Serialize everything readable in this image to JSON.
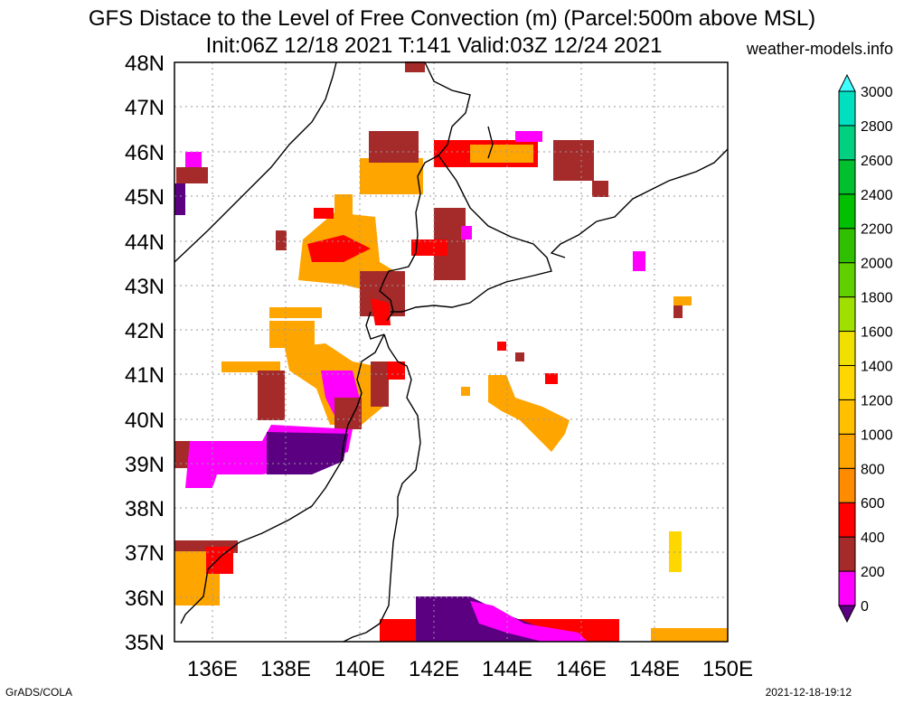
{
  "header": {
    "title_line1": "GFS Distace to the Level of Free Convection (m) (Parcel:500m above MSL)",
    "title_line2": "Init:06Z 12/18 2021 T:141 Valid:03Z 12/24 2021",
    "site": "weather-models.info"
  },
  "footer": {
    "left": "GrADS/COLA",
    "right": "2021-12-18-19:12"
  },
  "map": {
    "lat_labels": [
      "48N",
      "47N",
      "46N",
      "45N",
      "44N",
      "43N",
      "42N",
      "41N",
      "40N",
      "39N",
      "38N",
      "37N",
      "36N",
      "35N"
    ],
    "lon_labels": [
      "136E",
      "138E",
      "140E",
      "142E",
      "144E",
      "146E",
      "148E",
      "150E"
    ],
    "lat_range": [
      35,
      48
    ],
    "lon_range": [
      135,
      150
    ],
    "grid": "dotted"
  },
  "colorbar": {
    "levels": [
      "0",
      "200",
      "400",
      "600",
      "800",
      "1000",
      "1200",
      "1400",
      "1600",
      "1800",
      "2000",
      "2200",
      "2400",
      "2600",
      "2800",
      "3000"
    ],
    "colors": [
      "#5a0080",
      "#ff00ff",
      "#a52a2a",
      "#ff0000",
      "#ff8c00",
      "#ffa500",
      "#ffc000",
      "#ffd700",
      "#f0e000",
      "#a0e000",
      "#60d000",
      "#30c000",
      "#00c000",
      "#00c030",
      "#00d080",
      "#00e0c0",
      "#40ffff"
    ]
  }
}
